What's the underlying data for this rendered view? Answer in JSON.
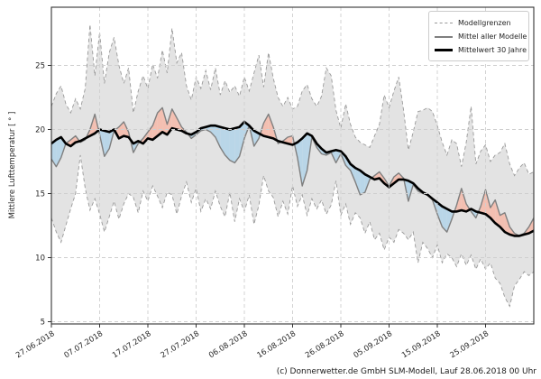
{
  "chart_data": {
    "type": "line",
    "title": "",
    "xlabel": "",
    "ylabel": "Mittlere Lufttemperatur [ ° ]",
    "footer": "(c) Donnerwetter.de GmbH SLM-Modell, Lauf 28.06.2018 00 Uhr",
    "grid": true,
    "legend_position": "upper right",
    "ylim": [
      4.8,
      29.7
    ],
    "y_ticks": [
      5,
      10,
      15,
      20,
      25
    ],
    "x_axis_unit": "days since 27.06.2018",
    "x_range_days": [
      0,
      100
    ],
    "x_ticks": [
      {
        "day": 0,
        "label": "27.06.2018"
      },
      {
        "day": 10,
        "label": "07.07.2018"
      },
      {
        "day": 20,
        "label": "17.07.2018"
      },
      {
        "day": 30,
        "label": "27.07.2018"
      },
      {
        "day": 40,
        "label": "06.08.2018"
      },
      {
        "day": 50,
        "label": "16.08.2018"
      },
      {
        "day": 60,
        "label": "26.08.2018"
      },
      {
        "day": 70,
        "label": "05.09.2018"
      },
      {
        "day": 80,
        "label": "15.09.2018"
      },
      {
        "day": 90,
        "label": "25.09.2018"
      }
    ],
    "legend": [
      {
        "label": "Modellgrenzen",
        "style": "dashed-gray"
      },
      {
        "label": "Mittel aller Modelle",
        "style": "solid-gray"
      },
      {
        "label": "Mittelwert 30 Jahre",
        "style": "thick-black"
      }
    ],
    "colors": {
      "band_fill": "#e3e3e3",
      "band_edge": "#999999",
      "model_mean_line": "#7f7f7f",
      "mean30_line": "#000000",
      "warm_anomaly_fill": "#f3bfb1",
      "cold_anomaly_fill": "#b9d6e8",
      "grid": "#cfcfcf",
      "frame": "#333333"
    },
    "series": [
      {
        "name": "Modellgrenzen oben",
        "values": [
          21.8,
          22.8,
          23.4,
          22.0,
          21.3,
          22.4,
          21.6,
          23.2,
          28.2,
          24.2,
          27.6,
          23.6,
          26.0,
          27.2,
          25.0,
          23.6,
          24.8,
          21.3,
          23.0,
          24.2,
          23.2,
          25.1,
          24.0,
          26.2,
          24.4,
          27.9,
          25.2,
          26.0,
          23.4,
          22.3,
          24.1,
          23.2,
          24.6,
          23.1,
          24.8,
          22.7,
          23.8,
          22.9,
          23.4,
          22.6,
          24.1,
          23.0,
          24.4,
          25.8,
          23.3,
          26.0,
          24.0,
          22.5,
          21.8,
          22.5,
          21.6,
          21.8,
          23.0,
          23.5,
          22.4,
          21.8,
          22.6,
          24.8,
          24.2,
          21.5,
          20.1,
          22.0,
          20.4,
          19.4,
          19.0,
          18.8,
          18.6,
          19.5,
          20.4,
          22.7,
          21.7,
          23.0,
          24.1,
          21.5,
          18.4,
          19.8,
          21.4,
          21.5,
          21.7,
          21.4,
          20.3,
          19.0,
          18.0,
          19.2,
          18.9,
          17.1,
          19.0,
          21.8,
          17.3,
          18.3,
          18.8,
          17.5,
          18.0,
          18.2,
          18.9,
          17.3,
          16.4,
          17.0,
          17.4,
          16.5,
          16.7
        ]
      },
      {
        "name": "Modellgrenzen unten",
        "values": [
          13.1,
          12.0,
          11.2,
          12.5,
          13.8,
          15.0,
          18.0,
          15.4,
          13.7,
          14.6,
          13.4,
          12.0,
          13.2,
          14.4,
          13.0,
          14.2,
          15.0,
          14.7,
          13.5,
          15.2,
          14.4,
          15.6,
          14.8,
          13.9,
          15.1,
          14.9,
          13.4,
          14.8,
          15.9,
          14.3,
          15.4,
          13.6,
          14.6,
          13.8,
          15.2,
          14.0,
          13.2,
          15.1,
          12.8,
          14.6,
          13.6,
          14.9,
          12.6,
          14.1,
          16.4,
          15.2,
          14.7,
          13.2,
          14.4,
          13.4,
          15.6,
          14.0,
          14.9,
          13.3,
          14.6,
          13.8,
          14.5,
          13.4,
          14.1,
          16.0,
          13.3,
          14.2,
          12.6,
          13.5,
          13.1,
          11.9,
          12.8,
          11.4,
          11.9,
          10.6,
          11.6,
          11.2,
          12.2,
          11.9,
          11.4,
          12.0,
          9.6,
          11.2,
          10.7,
          10.0,
          11.0,
          9.6,
          10.3,
          10.0,
          9.3,
          10.3,
          9.4,
          10.2,
          9.1,
          9.9,
          9.1,
          9.6,
          8.4,
          8.0,
          6.9,
          6.2,
          7.8,
          8.3,
          8.9,
          8.6,
          8.9
        ]
      },
      {
        "name": "Mittel aller Modelle",
        "values": [
          17.7,
          17.1,
          17.8,
          18.9,
          19.2,
          19.5,
          19.0,
          19.2,
          20.0,
          21.2,
          19.6,
          17.9,
          18.5,
          19.9,
          20.2,
          20.6,
          19.8,
          18.2,
          18.9,
          19.3,
          19.8,
          20.3,
          21.3,
          21.7,
          20.4,
          21.6,
          20.9,
          20.2,
          19.8,
          19.3,
          19.6,
          19.9,
          20.0,
          19.8,
          19.4,
          18.6,
          18.0,
          17.6,
          17.4,
          17.9,
          19.3,
          20.3,
          18.7,
          19.3,
          20.5,
          21.2,
          20.2,
          18.9,
          19.1,
          19.4,
          19.5,
          17.8,
          15.6,
          16.8,
          19.4,
          18.6,
          18.1,
          18.0,
          18.2,
          17.4,
          18.1,
          17.2,
          16.8,
          15.9,
          14.9,
          15.1,
          16.1,
          16.4,
          16.7,
          16.2,
          15.6,
          16.3,
          16.6,
          16.2,
          14.4,
          15.7,
          15.2,
          15.0,
          14.9,
          14.5,
          13.4,
          12.4,
          12.0,
          13.0,
          14.1,
          15.4,
          14.2,
          13.6,
          13.1,
          14.0,
          15.3,
          13.9,
          14.5,
          13.3,
          13.5,
          12.4,
          11.9,
          11.7,
          11.9,
          12.4,
          13.1
        ]
      },
      {
        "name": "Mittelwert 30 Jahre",
        "values": [
          18.9,
          19.2,
          19.4,
          18.9,
          18.7,
          19.0,
          19.1,
          19.3,
          19.5,
          19.7,
          20.0,
          19.9,
          19.8,
          20.0,
          19.3,
          19.5,
          19.4,
          18.9,
          19.1,
          18.9,
          19.3,
          19.2,
          19.5,
          19.8,
          19.6,
          20.1,
          20.0,
          19.9,
          19.7,
          19.6,
          19.8,
          20.1,
          20.2,
          20.3,
          20.3,
          20.2,
          20.1,
          20.0,
          20.1,
          20.2,
          20.6,
          20.3,
          19.9,
          19.7,
          19.5,
          19.4,
          19.3,
          19.1,
          19.0,
          18.9,
          18.8,
          19.0,
          19.3,
          19.7,
          19.5,
          18.9,
          18.5,
          18.2,
          18.3,
          18.4,
          18.3,
          17.9,
          17.3,
          17.0,
          16.8,
          16.5,
          16.3,
          16.1,
          16.2,
          15.8,
          15.5,
          15.8,
          16.1,
          16.1,
          16.0,
          15.8,
          15.4,
          15.1,
          14.9,
          14.6,
          14.3,
          14.0,
          13.8,
          13.6,
          13.6,
          13.7,
          13.6,
          13.8,
          13.6,
          13.5,
          13.4,
          13.1,
          12.7,
          12.4,
          12.0,
          11.8,
          11.7,
          11.7,
          11.8,
          11.9,
          12.1
        ]
      }
    ]
  }
}
